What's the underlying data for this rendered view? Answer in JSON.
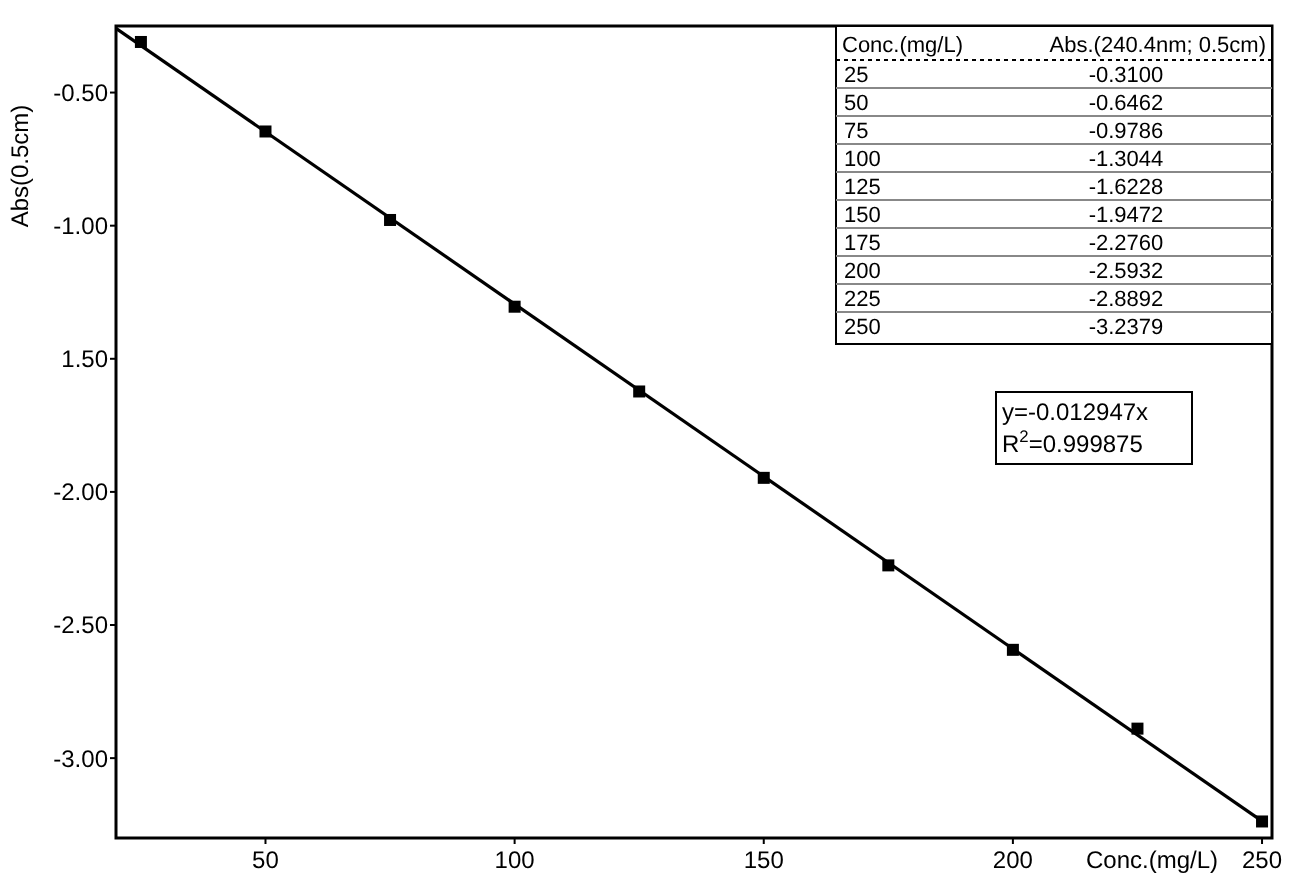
{
  "chart_data": {
    "type": "scatter",
    "xlabel": "Conc.(mg/L)",
    "ylabel": "Abs(0.5cm)",
    "x": [
      25,
      50,
      75,
      100,
      125,
      150,
      175,
      200,
      225,
      250
    ],
    "series": [
      {
        "color": "#000000",
        "marker": "square",
        "values": [
          -0.31,
          -0.6462,
          -0.9786,
          -1.3044,
          -1.6228,
          -1.9472,
          -2.276,
          -2.5932,
          -2.8892,
          -3.2379
        ]
      },
      {
        "type": "line",
        "color": "#000000",
        "x": [
          20,
          250
        ],
        "values": [
          -0.2589,
          -3.2368
        ]
      }
    ],
    "xlim": [
      20,
      252
    ],
    "ylim": [
      -3.3,
      -0.25
    ],
    "xticks": [
      50,
      100,
      150,
      200,
      250
    ],
    "yticks": [
      {
        "value": -0.5,
        "label": "-0.50"
      },
      {
        "value": -1.0,
        "label": "-1.00"
      },
      {
        "value": -1.5,
        "label": "1.50"
      },
      {
        "value": -2.0,
        "label": "-2.00"
      },
      {
        "value": -2.5,
        "label": "-2.50"
      },
      {
        "value": -3.0,
        "label": "-3.00"
      }
    ],
    "grid": false,
    "annotations": [
      "y=-0.012947x",
      "R$^{2}$=0.999875",
      "Conc.(mg/L)",
      "Abs.(240.4nm; 0.5cm)",
      "25",
      "-0.3100",
      "50",
      "-0.6462",
      "75",
      "-0.9786",
      "100",
      "-1.3044",
      "125",
      "-1.6228",
      "150",
      "-1.9472",
      "175",
      "-2.2760",
      "200",
      "-2.5932",
      "225",
      "-2.8892",
      "250",
      "-3.2379"
    ]
  }
}
